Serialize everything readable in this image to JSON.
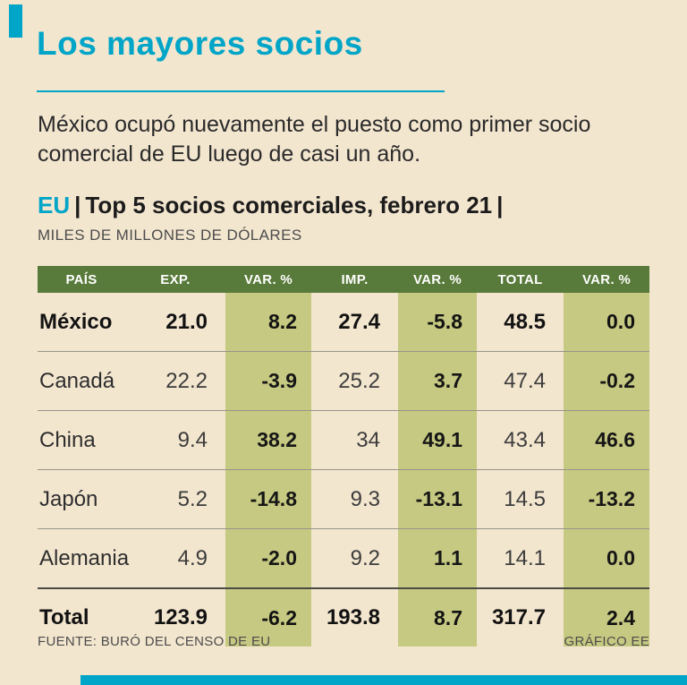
{
  "title": "Los mayores socios",
  "intro": "México ocupó nuevamente el puesto como primer socio comercial de EU luego de casi un año.",
  "kicker": {
    "region": "EU",
    "sep1": "|",
    "title": "Top 5 socios comerciales, febrero 21",
    "sep2": "|",
    "units": "MILES DE MILLONES DE DÓLARES"
  },
  "table": {
    "columns": [
      "PAÍS",
      "EXP.",
      "VAR. %",
      "IMP.",
      "VAR. %",
      "TOTAL",
      "VAR. %"
    ],
    "rows": [
      {
        "pais": "México",
        "exp": "21.0",
        "var_exp": "8.2",
        "imp": "27.4",
        "var_imp": "-5.8",
        "total": "48.5",
        "var_total": "0.0"
      },
      {
        "pais": "Canadá",
        "exp": "22.2",
        "var_exp": "-3.9",
        "imp": "25.2",
        "var_imp": "3.7",
        "total": "47.4",
        "var_total": "-0.2"
      },
      {
        "pais": "China",
        "exp": "9.4",
        "var_exp": "38.2",
        "imp": "34",
        "var_imp": "49.1",
        "total": "43.4",
        "var_total": "46.6"
      },
      {
        "pais": "Japón",
        "exp": "5.2",
        "var_exp": "-14.8",
        "imp": "9.3",
        "var_imp": "-13.1",
        "total": "14.5",
        "var_total": "-13.2"
      },
      {
        "pais": "Alemania",
        "exp": "4.9",
        "var_exp": "-2.0",
        "imp": "9.2",
        "var_imp": "1.1",
        "total": "14.1",
        "var_total": "0.0"
      }
    ],
    "total_row": {
      "pais": "Total",
      "exp": "123.9",
      "var_exp": "-6.2",
      "imp": "193.8",
      "var_imp": "8.7",
      "total": "317.7",
      "var_total": "2.4"
    }
  },
  "footer": {
    "source": "FUENTE: BURÓ DEL CENSO DE EU",
    "credit": "GRÁFICO EE"
  },
  "colors": {
    "accent_teal": "#00a5c8",
    "header_green": "#587a3a",
    "var_column_olive": "#c6c981",
    "background_cream": "#f3e6cf"
  },
  "chart_data": {
    "type": "table",
    "title": "EU | Top 5 socios comerciales, febrero 21",
    "subtitle": "Los mayores socios",
    "units": "Miles de millones de dólares",
    "columns": [
      "PAÍS",
      "EXP.",
      "VAR. %",
      "IMP.",
      "VAR. %",
      "TOTAL",
      "VAR. %"
    ],
    "rows": [
      [
        "México",
        21.0,
        8.2,
        27.4,
        -5.8,
        48.5,
        0.0
      ],
      [
        "Canadá",
        22.2,
        -3.9,
        25.2,
        3.7,
        47.4,
        -0.2
      ],
      [
        "China",
        9.4,
        38.2,
        34,
        49.1,
        43.4,
        46.6
      ],
      [
        "Japón",
        5.2,
        -14.8,
        9.3,
        -13.1,
        14.5,
        -13.2
      ],
      [
        "Alemania",
        4.9,
        -2.0,
        9.2,
        1.1,
        14.1,
        0.0
      ],
      [
        "Total",
        123.9,
        -6.2,
        193.8,
        8.7,
        317.7,
        2.4
      ]
    ],
    "highlighted_columns": [
      "VAR. %"
    ],
    "source": "Buró del Censo de EU"
  }
}
